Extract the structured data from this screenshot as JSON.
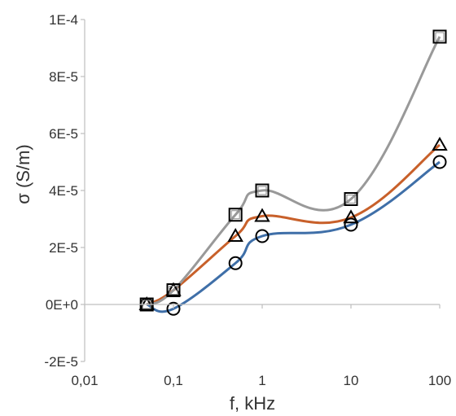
{
  "chart_data": {
    "type": "line",
    "title": "",
    "xlabel": "f, kHz",
    "ylabel": "σ (S/m)",
    "x_scale": "log",
    "xlim": [
      0.01,
      100
    ],
    "ylim": [
      -2e-05,
      0.0001
    ],
    "x_ticks": [
      {
        "value": 0.01,
        "label": "0,01"
      },
      {
        "value": 0.1,
        "label": "0,1"
      },
      {
        "value": 1,
        "label": "1"
      },
      {
        "value": 10,
        "label": "10"
      },
      {
        "value": 100,
        "label": "100"
      }
    ],
    "y_ticks": [
      {
        "value": -2e-05,
        "label": "-2E-5"
      },
      {
        "value": 0,
        "label": "0E+0"
      },
      {
        "value": 2e-05,
        "label": "2E-5"
      },
      {
        "value": 4e-05,
        "label": "4E-5"
      },
      {
        "value": 6e-05,
        "label": "6E-5"
      },
      {
        "value": 8e-05,
        "label": "8E-5"
      },
      {
        "value": 0.0001,
        "label": "1E-4"
      }
    ],
    "grid": false,
    "legend": "none",
    "series": [
      {
        "marker": "circle",
        "color": "#3f6fa8",
        "x": [
          0.05,
          0.1,
          0.5,
          1,
          10,
          100
        ],
        "y": [
          0,
          -1.5e-06,
          1.45e-05,
          2.4e-05,
          2.8e-05,
          5e-05
        ]
      },
      {
        "marker": "triangle",
        "color": "#c8602a",
        "x": [
          0.05,
          0.1,
          0.5,
          1,
          10,
          100
        ],
        "y": [
          0,
          5e-06,
          2.4e-05,
          3.1e-05,
          3.05e-05,
          5.6e-05
        ]
      },
      {
        "marker": "square",
        "color": "#999999",
        "x": [
          0.05,
          0.1,
          0.5,
          1,
          10,
          100
        ],
        "y": [
          0,
          5e-06,
          3.15e-05,
          4e-05,
          3.7e-05,
          9.4e-05
        ]
      }
    ]
  }
}
